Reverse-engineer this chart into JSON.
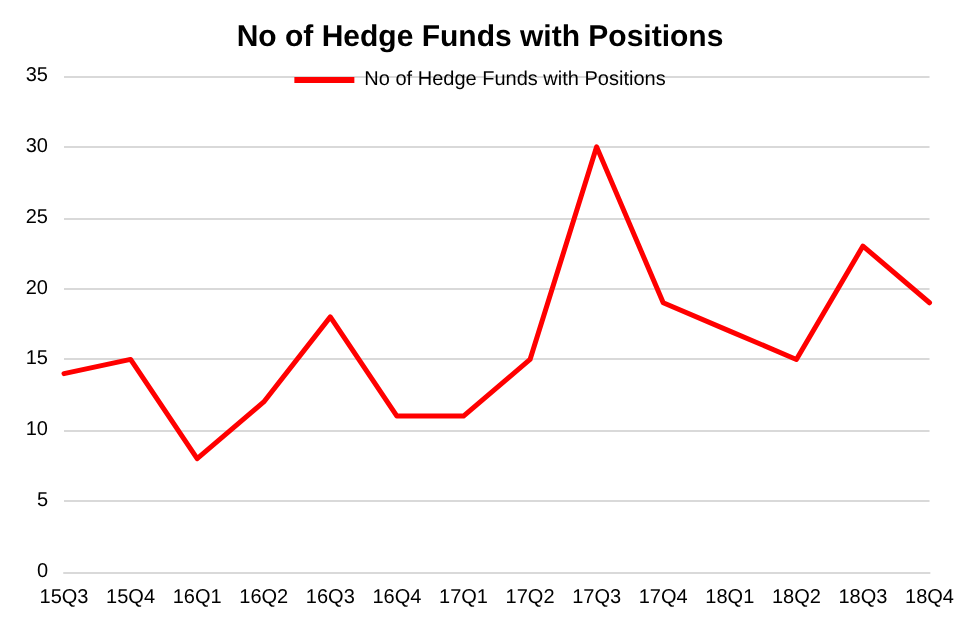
{
  "chart_data": {
    "type": "line",
    "title": "No of Hedge Funds with Positions",
    "categories": [
      "15Q3",
      "15Q4",
      "16Q1",
      "16Q2",
      "16Q3",
      "16Q4",
      "17Q1",
      "17Q2",
      "17Q3",
      "17Q4",
      "18Q1",
      "18Q2",
      "18Q3",
      "18Q4"
    ],
    "series": [
      {
        "name": "No of Hedge Funds with Positions",
        "color": "#ff0000",
        "values": [
          14,
          15,
          8,
          12,
          18,
          11,
          11,
          15,
          30,
          19,
          17,
          15,
          23,
          19
        ]
      }
    ],
    "ylim": [
      0,
      35
    ],
    "yticks": [
      0,
      5,
      10,
      15,
      20,
      25,
      30,
      35
    ],
    "grid": "y",
    "legend": "top",
    "marker": "none",
    "line_style": "solid"
  }
}
